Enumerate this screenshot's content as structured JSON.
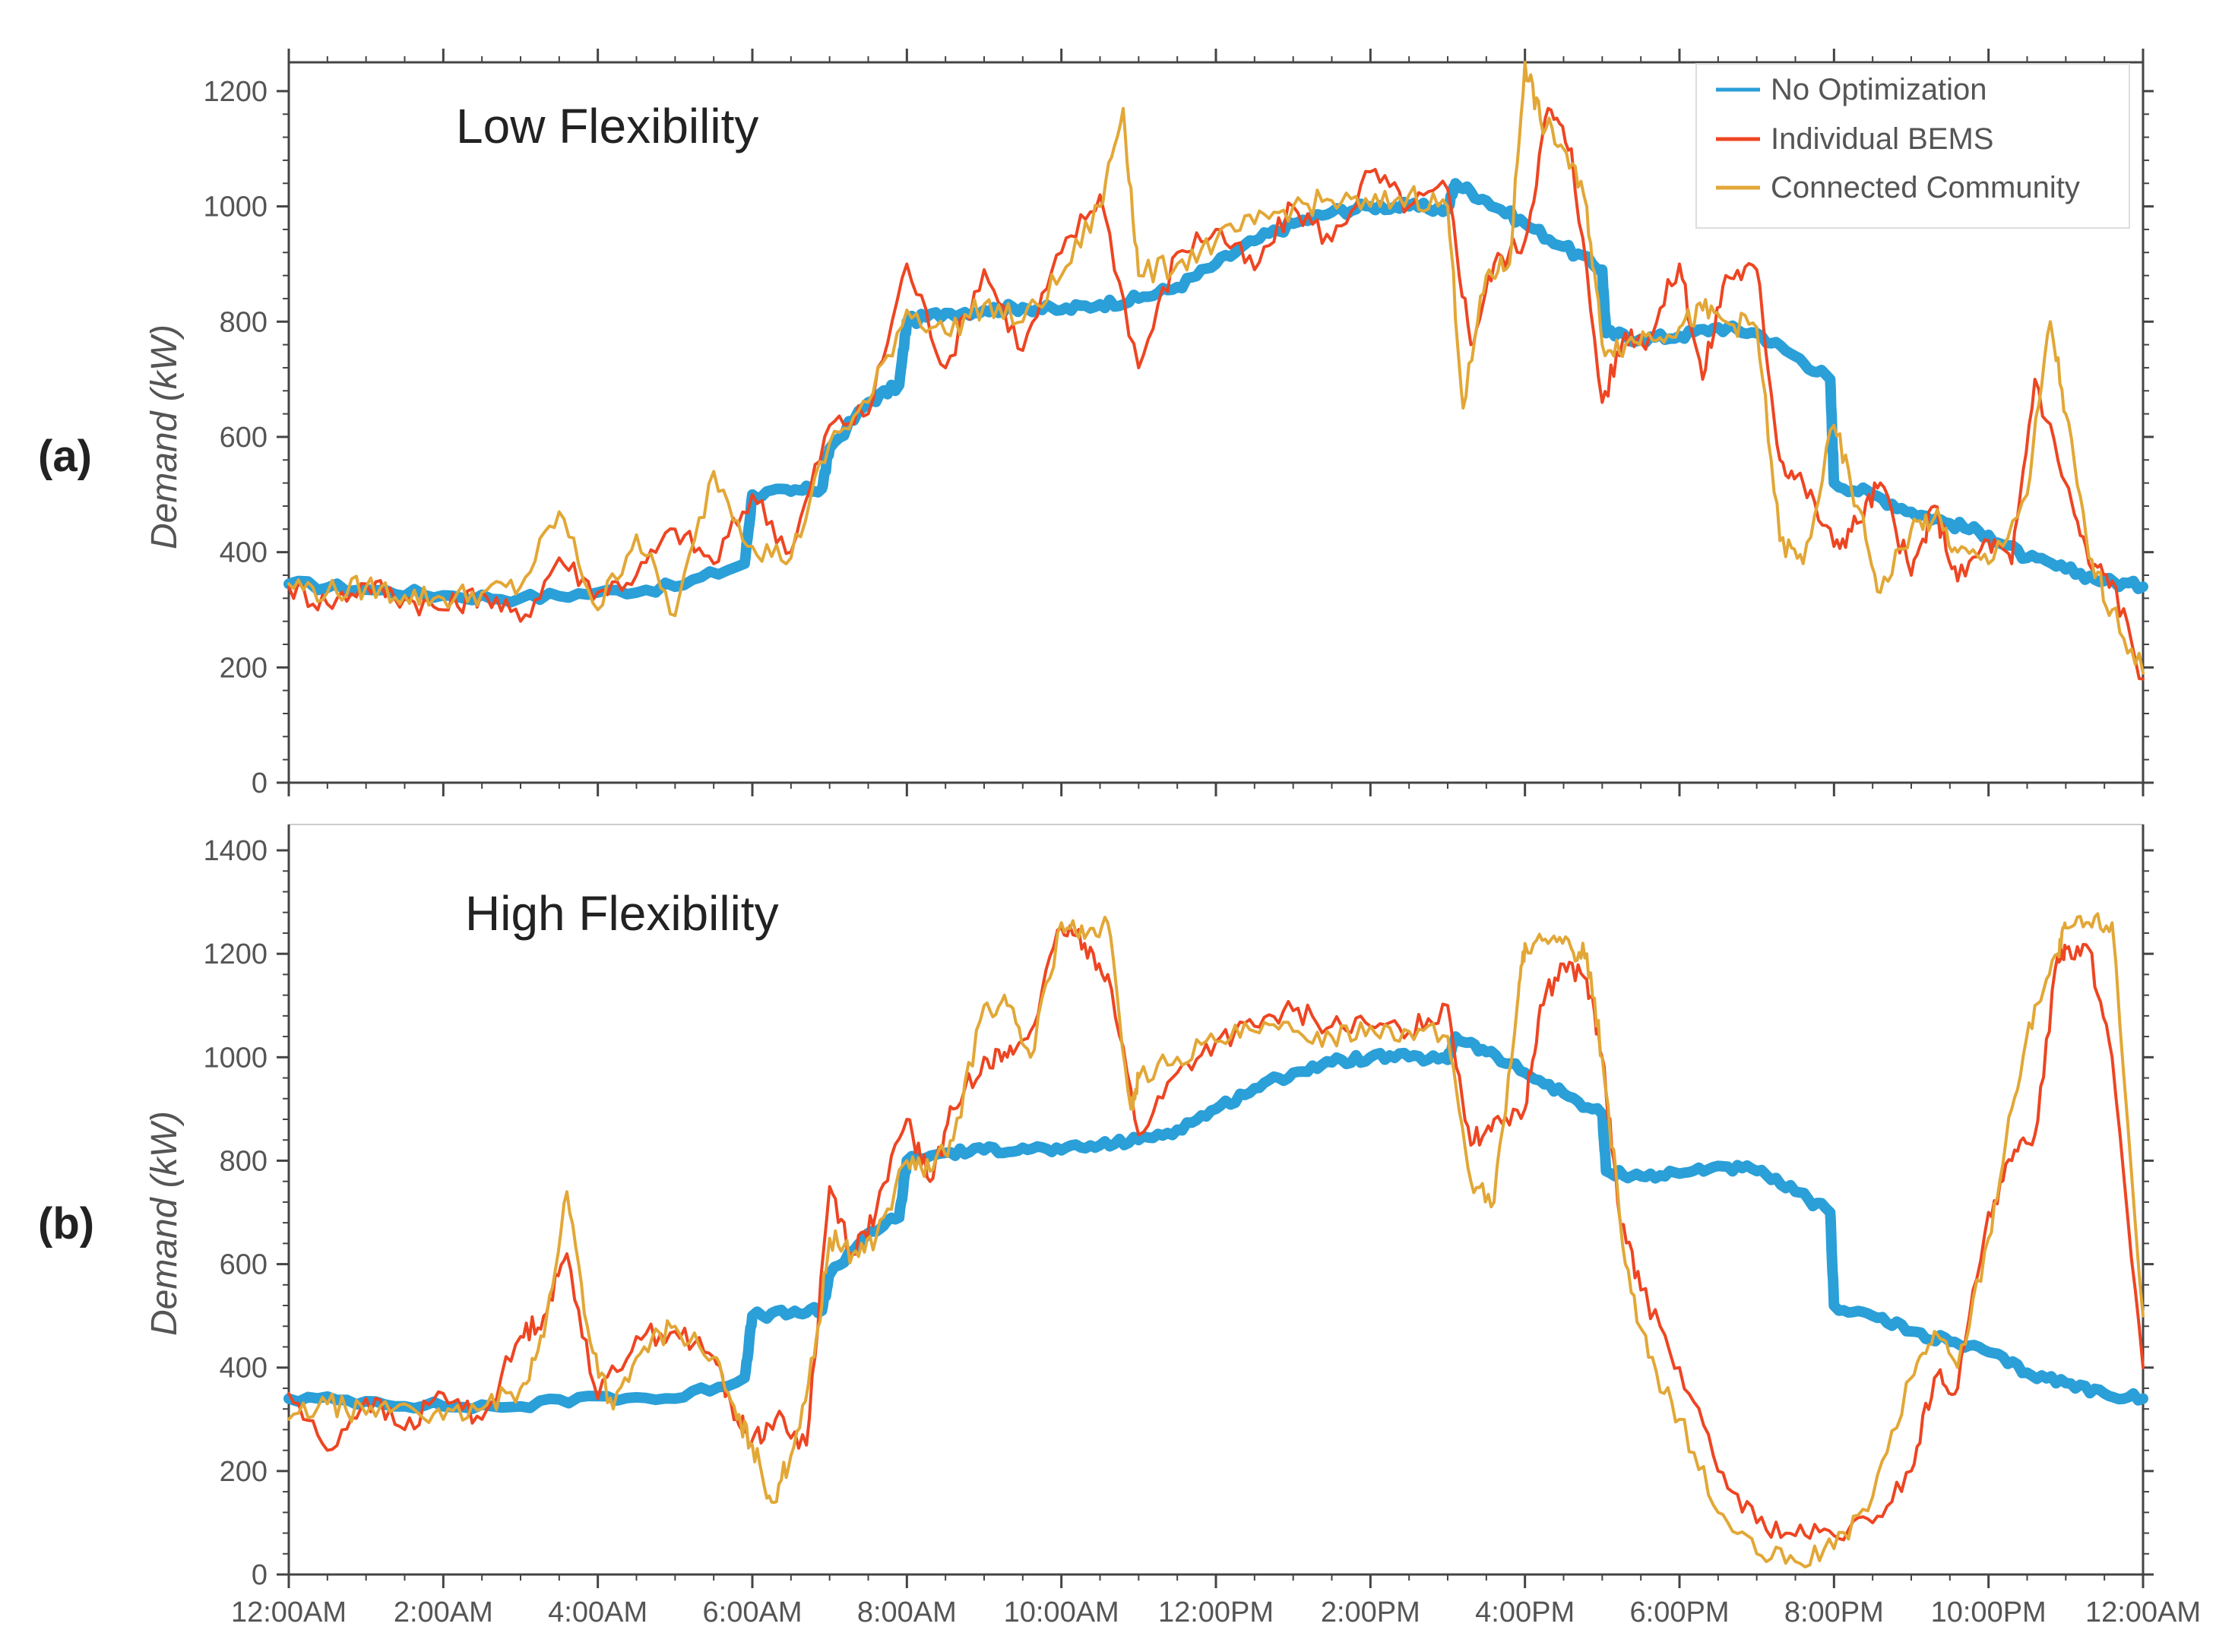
{
  "chart_data": [
    {
      "type": "line",
      "panel_label": "(a)",
      "title": "Low Flexibility",
      "xlabel": "",
      "ylabel": "Demand (kW)",
      "ylim": [
        0,
        1250
      ],
      "yticks": [
        0,
        200,
        400,
        600,
        800,
        1000,
        1200
      ],
      "xlim": [
        0,
        24
      ],
      "grid": false,
      "legend_position": "top-right",
      "series": [
        {
          "name": "No Optimization",
          "color": "#2a9fd8",
          "x": [
            0,
            1,
            2,
            3,
            4,
            5,
            5.9,
            6,
            6.5,
            6.9,
            7,
            7.5,
            7.9,
            8,
            8.5,
            9,
            9.5,
            10,
            10.5,
            11,
            11.5,
            12,
            12.5,
            13,
            13.5,
            14,
            14.5,
            15,
            15.1,
            15.5,
            16,
            16.5,
            17,
            17.05,
            17.5,
            18,
            18.5,
            19,
            19.5,
            19.95,
            20,
            20.5,
            21,
            21.5,
            22,
            22.5,
            23,
            23.5,
            24
          ],
          "values": [
            345,
            335,
            325,
            320,
            330,
            340,
            380,
            500,
            505,
            510,
            580,
            660,
            690,
            800,
            815,
            820,
            825,
            820,
            830,
            840,
            860,
            900,
            940,
            970,
            990,
            1000,
            1000,
            995,
            1040,
            1010,
            970,
            930,
            890,
            780,
            770,
            775,
            790,
            780,
            740,
            700,
            520,
            500,
            470,
            450,
            430,
            390,
            370,
            350,
            340
          ]
        },
        {
          "name": "Individual BEMS",
          "color": "#ee4522",
          "x": [
            0,
            0.5,
            1,
            1.5,
            2,
            2.5,
            3,
            3.5,
            4,
            4.5,
            5,
            5.5,
            6,
            6.5,
            7,
            7.5,
            8,
            8.5,
            9,
            9.5,
            10,
            10.5,
            11,
            11.5,
            12,
            12.5,
            13,
            13.5,
            14,
            14.5,
            15,
            15.3,
            15.6,
            16,
            16.3,
            16.6,
            17,
            17.3,
            17.6,
            18,
            18.3,
            18.6,
            19,
            19.3,
            19.6,
            20,
            20.3,
            20.6,
            21,
            21.3,
            21.6,
            22,
            22.3,
            22.6,
            23,
            23.3,
            23.6,
            24
          ],
          "values": [
            340,
            310,
            345,
            320,
            300,
            330,
            280,
            390,
            330,
            360,
            440,
            380,
            500,
            400,
            620,
            640,
            900,
            720,
            890,
            750,
            920,
            1020,
            720,
            920,
            960,
            890,
            1000,
            940,
            1060,
            1000,
            1030,
            760,
            900,
            940,
            1170,
            1100,
            660,
            780,
            770,
            900,
            700,
            880,
            890,
            560,
            520,
            410,
            450,
            520,
            360,
            480,
            350,
            420,
            380,
            700,
            520,
            380,
            350,
            180
          ]
        },
        {
          "name": "Connected Community",
          "color": "#e2a736",
          "x": [
            0,
            0.5,
            1,
            1.5,
            2,
            2.5,
            3,
            3.5,
            4,
            4.5,
            5,
            5.5,
            6,
            6.5,
            7,
            7.5,
            8,
            8.5,
            9,
            9.5,
            10,
            10.5,
            10.8,
            11,
            11.5,
            12,
            12.5,
            13,
            13.5,
            14,
            14.5,
            15,
            15.2,
            15.5,
            15.8,
            16,
            16.2,
            16.5,
            16.8,
            17,
            17.3,
            17.6,
            18,
            18.3,
            18.6,
            19,
            19.3,
            19.6,
            20,
            20.3,
            20.6,
            21,
            21.3,
            21.6,
            22,
            22.5,
            22.8,
            23,
            23.3,
            23.6,
            24
          ],
          "values": [
            345,
            330,
            340,
            325,
            320,
            330,
            340,
            470,
            300,
            430,
            290,
            540,
            410,
            390,
            590,
            660,
            820,
            780,
            830,
            800,
            880,
            1000,
            1170,
            880,
            900,
            940,
            970,
            1000,
            1010,
            1000,
            1020,
            1000,
            650,
            880,
            900,
            1250,
            1150,
            1100,
            1000,
            760,
            760,
            780,
            790,
            820,
            800,
            790,
            420,
            380,
            620,
            480,
            330,
            440,
            460,
            400,
            380,
            500,
            800,
            640,
            390,
            300,
            190
          ]
        }
      ]
    },
    {
      "type": "line",
      "panel_label": "(b)",
      "title": "High Flexibility",
      "xlabel": "",
      "ylabel": "Demand (kW)",
      "ylim": [
        0,
        1450
      ],
      "yticks": [
        0,
        200,
        400,
        600,
        800,
        1000,
        1200,
        1400
      ],
      "xlim": [
        0,
        24
      ],
      "xticks": [
        "12:00AM",
        "2:00AM",
        "4:00AM",
        "6:00AM",
        "8:00AM",
        "10:00AM",
        "12:00PM",
        "2:00PM",
        "4:00PM",
        "6:00PM",
        "8:00PM",
        "10:00PM",
        "12:00AM"
      ],
      "grid": false,
      "series": [
        {
          "name": "No Optimization",
          "color": "#2a9fd8",
          "x": [
            0,
            1,
            2,
            3,
            4,
            5,
            5.9,
            6,
            6.5,
            6.9,
            7,
            7.5,
            7.9,
            8,
            8.5,
            9,
            9.5,
            10,
            10.5,
            11,
            11.5,
            12,
            12.5,
            13,
            13.5,
            14,
            14.5,
            15,
            15.1,
            15.5,
            16,
            16.5,
            17,
            17.05,
            17.5,
            18,
            18.5,
            19,
            19.5,
            19.95,
            20,
            20.5,
            21,
            21.5,
            22,
            22.5,
            23,
            23.5,
            24
          ],
          "values": [
            340,
            335,
            325,
            325,
            345,
            340,
            380,
            500,
            505,
            510,
            580,
            660,
            690,
            800,
            815,
            820,
            825,
            820,
            830,
            840,
            860,
            900,
            940,
            970,
            990,
            1000,
            1000,
            995,
            1040,
            1010,
            970,
            930,
            890,
            780,
            770,
            775,
            790,
            780,
            740,
            700,
            520,
            500,
            470,
            450,
            430,
            390,
            370,
            350,
            340
          ]
        },
        {
          "name": "Individual BEMS",
          "color": "#ee4522",
          "x": [
            0,
            0.5,
            1,
            1.5,
            2,
            2.5,
            3,
            3.3,
            3.6,
            4,
            4.5,
            5,
            5.5,
            5.8,
            6,
            6.3,
            6.7,
            7,
            7.3,
            7.6,
            8,
            8.3,
            8.6,
            9,
            9.3,
            9.6,
            10,
            10.3,
            10.6,
            11,
            11.5,
            12,
            12.5,
            13,
            13.5,
            14,
            14.5,
            15,
            15.3,
            15.6,
            16,
            16.2,
            16.5,
            16.8,
            17,
            17.2,
            17.5,
            18,
            18.5,
            19,
            19.5,
            20,
            20.5,
            21,
            21.3,
            21.6,
            22,
            22.3,
            22.6,
            22.9,
            23,
            23.3,
            23.6,
            24
          ],
          "values": [
            350,
            240,
            340,
            280,
            350,
            300,
            460,
            500,
            620,
            340,
            460,
            470,
            420,
            300,
            260,
            300,
            250,
            750,
            620,
            700,
            880,
            760,
            900,
            1000,
            1000,
            1050,
            1250,
            1220,
            1160,
            850,
            970,
            1030,
            1060,
            1090,
            1060,
            1060,
            1050,
            1100,
            830,
            880,
            900,
            1100,
            1180,
            1150,
            1000,
            720,
            550,
            400,
            200,
            100,
            75,
            75,
            100,
            200,
            380,
            360,
            700,
            800,
            850,
            1200,
            1210,
            1210,
            1000,
            400
          ]
        },
        {
          "name": "Connected Community",
          "color": "#e2a736",
          "x": [
            0,
            0.5,
            1,
            1.5,
            2,
            2.5,
            3,
            3.3,
            3.6,
            3.9,
            4.2,
            4.6,
            5,
            5.5,
            5.8,
            6,
            6.25,
            6.5,
            6.8,
            7,
            7.3,
            7.6,
            8,
            8.3,
            8.6,
            9,
            9.3,
            9.6,
            10,
            10.3,
            10.6,
            10.9,
            11,
            11.5,
            12,
            12.5,
            13,
            13.5,
            14,
            14.5,
            15,
            15.3,
            15.6,
            15.9,
            16,
            16.3,
            16.6,
            16.8,
            17,
            17.3,
            17.6,
            18,
            18.5,
            19,
            19.5,
            20,
            20.5,
            21,
            21.3,
            21.6,
            22,
            22.3,
            22.6,
            22.9,
            23,
            23.3,
            23.6,
            24
          ],
          "values": [
            300,
            330,
            310,
            330,
            300,
            320,
            360,
            460,
            740,
            450,
            320,
            440,
            480,
            420,
            300,
            250,
            140,
            230,
            420,
            650,
            620,
            650,
            800,
            780,
            840,
            1100,
            1100,
            1000,
            1260,
            1230,
            1260,
            900,
            960,
            1000,
            1030,
            1050,
            1050,
            1040,
            1060,
            1050,
            1040,
            760,
            720,
            1100,
            1220,
            1220,
            1210,
            1200,
            1000,
            600,
            420,
            300,
            120,
            40,
            25,
            50,
            150,
            380,
            470,
            400,
            650,
            900,
            1100,
            1200,
            1250,
            1260,
            1260,
            500
          ]
        }
      ]
    }
  ]
}
